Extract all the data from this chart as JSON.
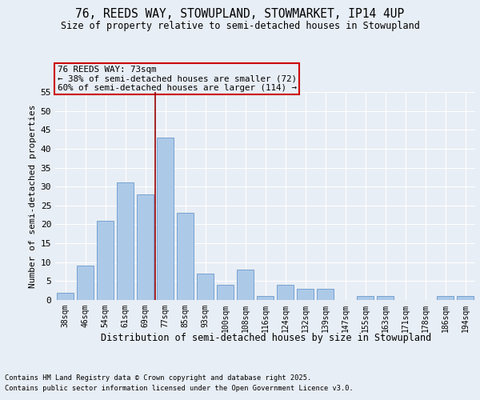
{
  "title1": "76, REEDS WAY, STOWUPLAND, STOWMARKET, IP14 4UP",
  "title2": "Size of property relative to semi-detached houses in Stowupland",
  "xlabel": "Distribution of semi-detached houses by size in Stowupland",
  "ylabel": "Number of semi-detached properties",
  "categories": [
    "38sqm",
    "46sqm",
    "54sqm",
    "61sqm",
    "69sqm",
    "77sqm",
    "85sqm",
    "93sqm",
    "100sqm",
    "108sqm",
    "116sqm",
    "124sqm",
    "132sqm",
    "139sqm",
    "147sqm",
    "155sqm",
    "163sqm",
    "171sqm",
    "178sqm",
    "186sqm",
    "194sqm"
  ],
  "values": [
    2,
    9,
    21,
    31,
    28,
    43,
    23,
    7,
    4,
    8,
    1,
    4,
    3,
    3,
    0,
    1,
    1,
    0,
    0,
    1,
    1
  ],
  "bar_color": "#adc9e8",
  "bar_edge_color": "#6699cc",
  "vline_x": 4.5,
  "vline_color": "#990000",
  "annotation_title": "76 REEDS WAY: 73sqm",
  "annotation_line1": "← 38% of semi-detached houses are smaller (72)",
  "annotation_line2": "60% of semi-detached houses are larger (114) →",
  "annotation_box_color": "#cc0000",
  "ylim": [
    0,
    55
  ],
  "yticks": [
    0,
    5,
    10,
    15,
    20,
    25,
    30,
    35,
    40,
    45,
    50,
    55
  ],
  "footer1": "Contains HM Land Registry data © Crown copyright and database right 2025.",
  "footer2": "Contains public sector information licensed under the Open Government Licence v3.0.",
  "bg_color": "#e8eef5",
  "grid_color": "#ffffff"
}
